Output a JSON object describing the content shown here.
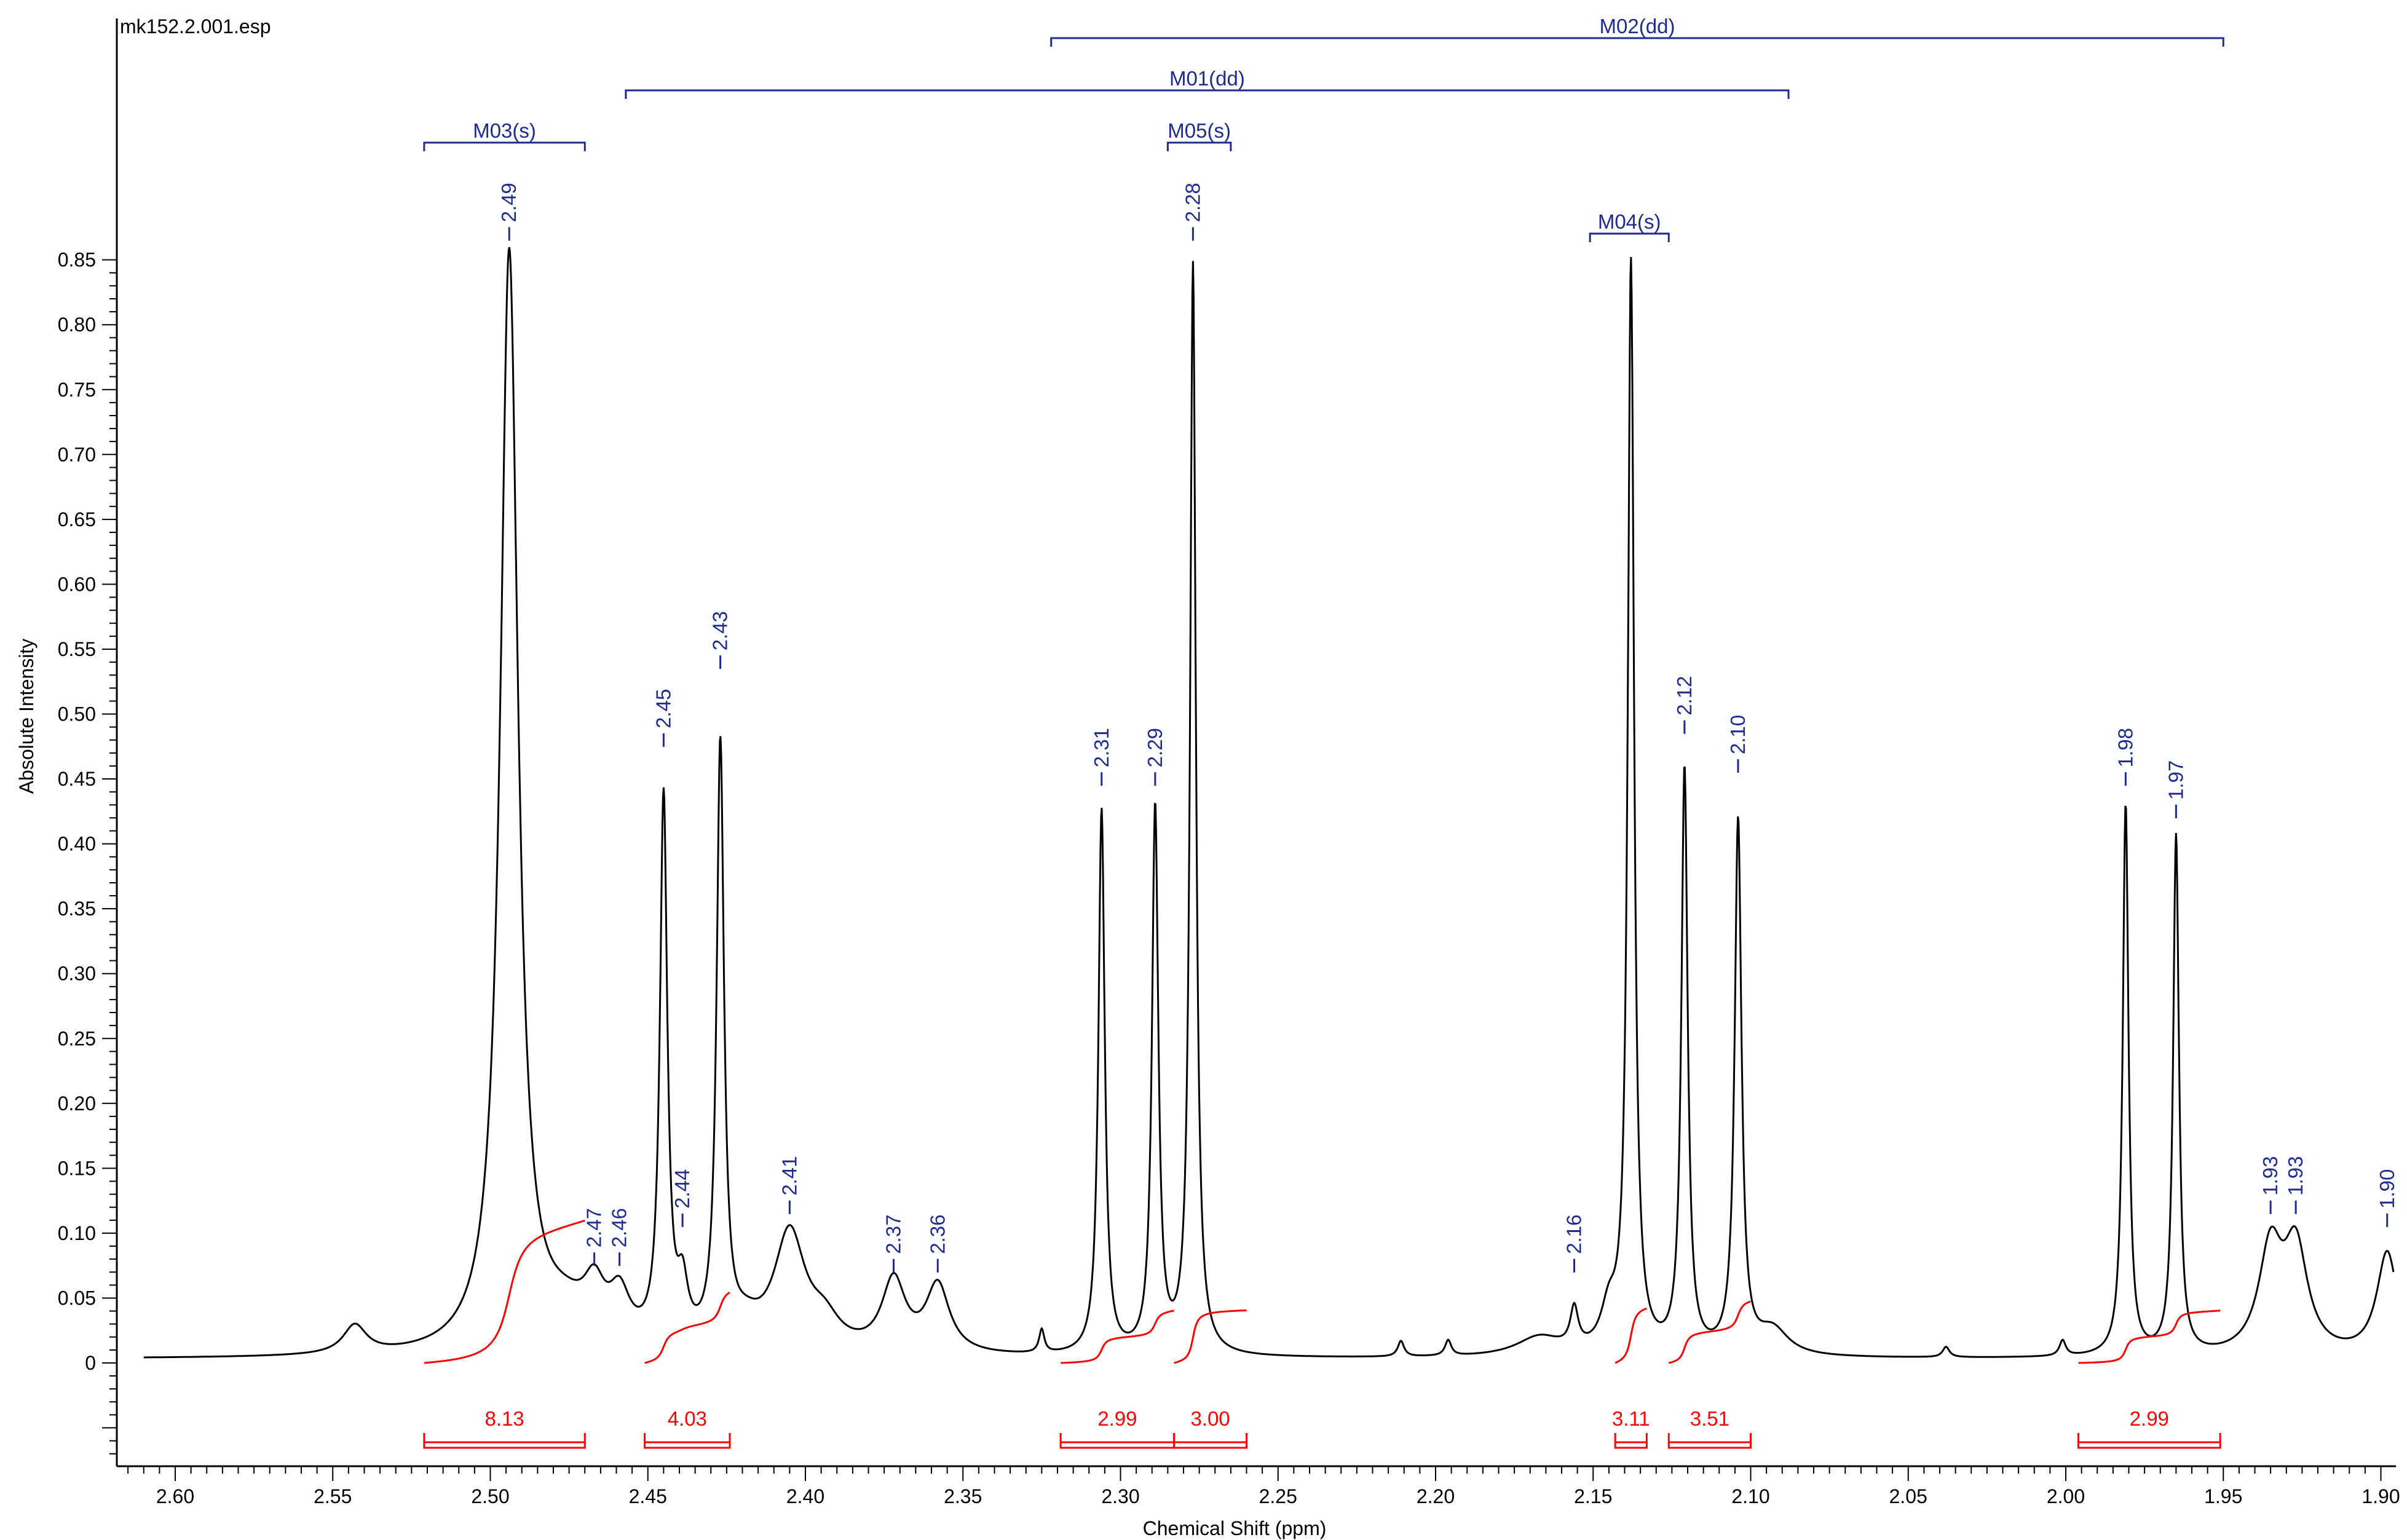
{
  "file_label": "mk152.2.001.esp",
  "colors": {
    "spectrum": "#000000",
    "peak_labels": "#1f2b8f",
    "integration": "#ff0000",
    "axis": "#000000"
  },
  "chart_data": {
    "type": "line",
    "title": "",
    "xlabel": "Chemical Shift (ppm)",
    "ylabel": "Absolute Intensity",
    "xlim": [
      2.62,
      1.895
    ],
    "ylim": [
      -0.08,
      0.85
    ],
    "x_ticks": [
      "2.60",
      "2.55",
      "2.50",
      "2.45",
      "2.40",
      "2.35",
      "2.30",
      "2.25",
      "2.20",
      "2.15",
      "2.10",
      "2.05",
      "2.00",
      "1.95",
      "1.90"
    ],
    "y_ticks": [
      "0",
      "0.05",
      "0.10",
      "0.15",
      "0.20",
      "0.25",
      "0.30",
      "0.35",
      "0.40",
      "0.45",
      "0.50",
      "0.55",
      "0.60",
      "0.65",
      "0.70",
      "0.75",
      "0.80",
      "0.85"
    ],
    "baseline": 0.003,
    "peaks": [
      {
        "x": 2.543,
        "h": 0.022,
        "w": 0.0045
      },
      {
        "x": 2.494,
        "h": 0.848,
        "w": 0.0034
      },
      {
        "x": 2.476,
        "h": 0.025,
        "w": 0.01
      },
      {
        "x": 2.467,
        "h": 0.035,
        "w": 0.004
      },
      {
        "x": 2.459,
        "h": 0.035,
        "w": 0.004
      },
      {
        "x": 2.445,
        "h": 0.42,
        "w": 0.0014
      },
      {
        "x": 2.439,
        "h": 0.04,
        "w": 0.002
      },
      {
        "x": 2.427,
        "h": 0.46,
        "w": 0.0014
      },
      {
        "x": 2.419,
        "h": 0.015,
        "w": 0.006
      },
      {
        "x": 2.405,
        "h": 0.09,
        "w": 0.006
      },
      {
        "x": 2.394,
        "h": 0.02,
        "w": 0.006
      },
      {
        "x": 2.372,
        "h": 0.055,
        "w": 0.0045
      },
      {
        "x": 2.358,
        "h": 0.052,
        "w": 0.0045
      },
      {
        "x": 2.325,
        "h": 0.018,
        "w": 0.001
      },
      {
        "x": 2.306,
        "h": 0.42,
        "w": 0.0012
      },
      {
        "x": 2.289,
        "h": 0.42,
        "w": 0.0012
      },
      {
        "x": 2.277,
        "h": 0.84,
        "w": 0.0011
      },
      {
        "x": 2.211,
        "h": 0.012,
        "w": 0.0012
      },
      {
        "x": 2.196,
        "h": 0.012,
        "w": 0.0012
      },
      {
        "x": 2.167,
        "h": 0.015,
        "w": 0.009
      },
      {
        "x": 2.156,
        "h": 0.03,
        "w": 0.0015
      },
      {
        "x": 2.145,
        "h": 0.03,
        "w": 0.003
      },
      {
        "x": 2.138,
        "h": 0.84,
        "w": 0.0012
      },
      {
        "x": 2.121,
        "h": 0.45,
        "w": 0.0012
      },
      {
        "x": 2.104,
        "h": 0.41,
        "w": 0.0013
      },
      {
        "x": 2.093,
        "h": 0.02,
        "w": 0.006
      },
      {
        "x": 2.038,
        "h": 0.008,
        "w": 0.0013
      },
      {
        "x": 2.001,
        "h": 0.012,
        "w": 0.0012
      },
      {
        "x": 1.981,
        "h": 0.425,
        "w": 0.0011
      },
      {
        "x": 1.965,
        "h": 0.4,
        "w": 0.0011
      },
      {
        "x": 1.935,
        "h": 0.08,
        "w": 0.0045
      },
      {
        "x": 1.927,
        "h": 0.08,
        "w": 0.0045
      },
      {
        "x": 1.898,
        "h": 0.08,
        "w": 0.004
      }
    ],
    "peak_labels": [
      {
        "x": 2.494,
        "text": "2.49",
        "top": 0.86
      },
      {
        "x": 2.467,
        "text": "2.47",
        "top": 0.07
      },
      {
        "x": 2.459,
        "text": "2.46",
        "top": 0.07
      },
      {
        "x": 2.445,
        "text": "2.45",
        "top": 0.47
      },
      {
        "x": 2.439,
        "text": "2.44",
        "top": 0.1
      },
      {
        "x": 2.427,
        "text": "2.43",
        "top": 0.53
      },
      {
        "x": 2.405,
        "text": "2.41",
        "top": 0.11
      },
      {
        "x": 2.372,
        "text": "2.37",
        "top": 0.065
      },
      {
        "x": 2.358,
        "text": "2.36",
        "top": 0.065
      },
      {
        "x": 2.306,
        "text": "2.31",
        "top": 0.44
      },
      {
        "x": 2.289,
        "text": "2.29",
        "top": 0.44
      },
      {
        "x": 2.277,
        "text": "2.28",
        "top": 0.86
      },
      {
        "x": 2.156,
        "text": "2.16",
        "top": 0.065
      },
      {
        "x": 2.121,
        "text": "2.12",
        "top": 0.48
      },
      {
        "x": 2.104,
        "text": "2.10",
        "top": 0.45
      },
      {
        "x": 1.981,
        "text": "1.98",
        "top": 0.44
      },
      {
        "x": 1.965,
        "text": "1.97",
        "top": 0.415
      },
      {
        "x": 1.935,
        "text": "1.93",
        "top": 0.11
      },
      {
        "x": 1.927,
        "text": "1.93",
        "top": 0.11
      },
      {
        "x": 1.898,
        "text": "1.90",
        "top": 0.1
      }
    ],
    "multiplets": [
      {
        "label": "M02(dd)",
        "x_start": 2.322,
        "x_end": 1.95,
        "level": 0
      },
      {
        "label": "M01(dd)",
        "x_start": 2.457,
        "x_end": 2.088,
        "level": 1
      },
      {
        "label": "M03(s)",
        "x_start": 2.521,
        "x_end": 2.47,
        "level": 2
      },
      {
        "label": "M05(s)",
        "x_start": 2.285,
        "x_end": 2.265,
        "level": 2
      },
      {
        "label": "M04(s)",
        "x_start": 2.151,
        "x_end": 2.126,
        "level": 3
      }
    ],
    "integrals": [
      {
        "label": "8.13",
        "x_start": 2.521,
        "x_end": 2.47
      },
      {
        "label": "4.03",
        "x_start": 2.451,
        "x_end": 2.424
      },
      {
        "label": "2.99",
        "x_start": 2.319,
        "x_end": 2.283
      },
      {
        "label": "3.00",
        "x_start": 2.283,
        "x_end": 2.26
      },
      {
        "label": "3.11",
        "x_start": 2.143,
        "x_end": 2.133
      },
      {
        "label": "3.51",
        "x_start": 2.126,
        "x_end": 2.1
      },
      {
        "label": "2.99",
        "x_start": 1.996,
        "x_end": 1.951
      }
    ]
  }
}
